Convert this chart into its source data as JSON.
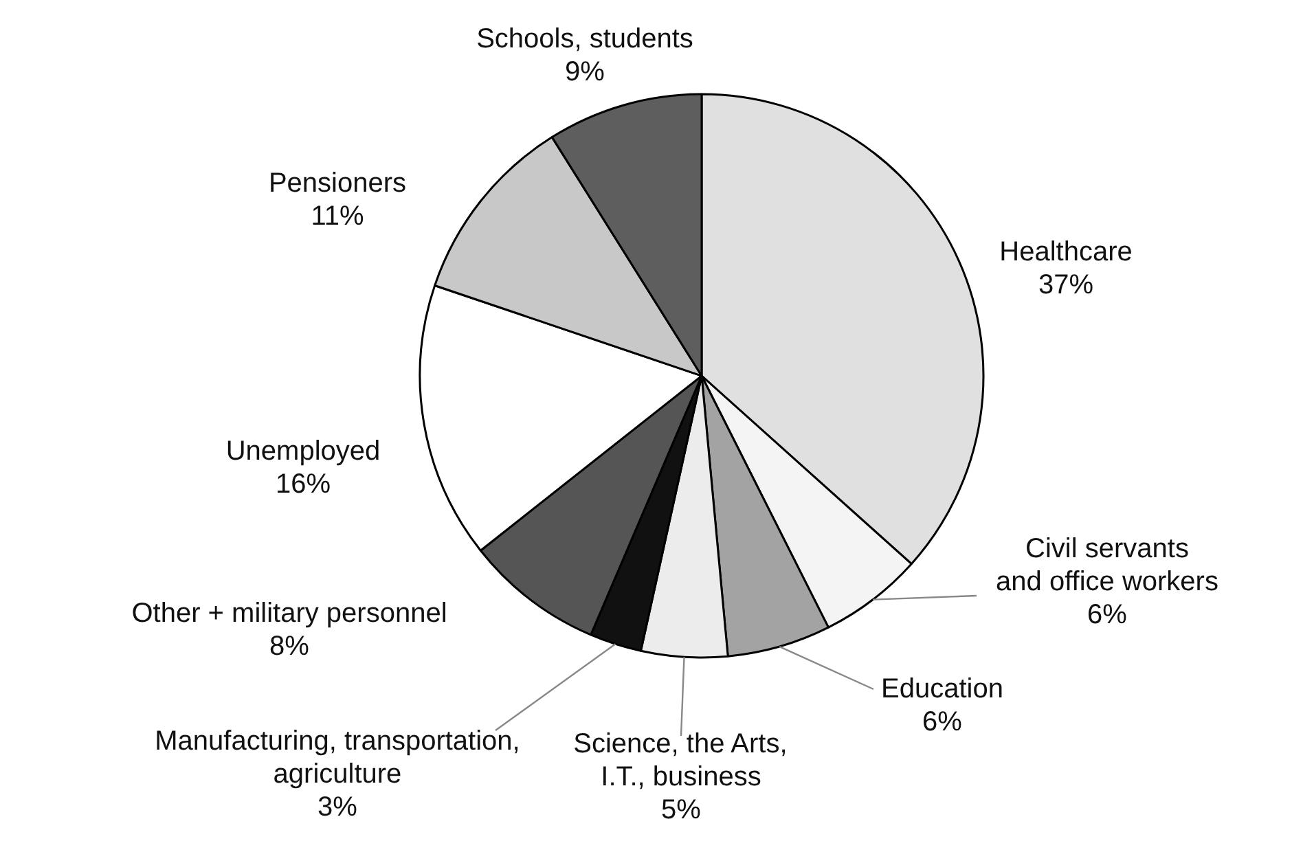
{
  "chart_data": {
    "type": "pie",
    "categories": [
      "Healthcare",
      "Civil servants and office workers",
      "Education",
      "Science, the Arts, I.T., business",
      "Manufacturing, transportation, agriculture",
      "Other + military personnel",
      "Unemployed",
      "Pensioners",
      "Schools, students"
    ],
    "values": [
      37,
      6,
      6,
      5,
      3,
      8,
      16,
      11,
      9
    ],
    "data_labels": true,
    "value_labels": [
      "37%",
      "6%",
      "6%",
      "5%",
      "3%",
      "8%",
      "16%",
      "11%",
      "9%"
    ],
    "colors": [
      "#e0e0e0",
      "#f4f4f4",
      "#a3a3a3",
      "#ececec",
      "#111111",
      "#555555",
      "#ffffff",
      "#c8c8c8",
      "#5e5e5e"
    ]
  }
}
